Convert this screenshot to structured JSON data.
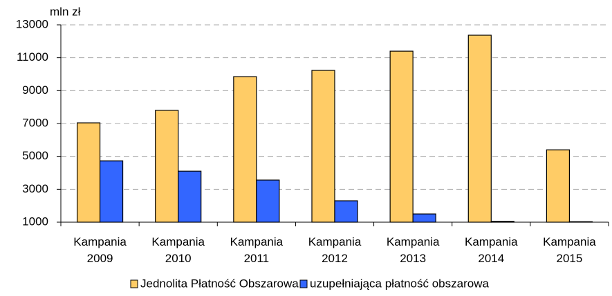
{
  "chart_data": {
    "type": "bar",
    "y_label": "mln zł",
    "categories": [
      "Kampania 2009",
      "Kampania 2010",
      "Kampania 2011",
      "Kampania 2012",
      "Kampania 2013",
      "Kampania 2014",
      "Kampania 2015"
    ],
    "series": [
      {
        "name": "Jednolita Płatność Obszarowa",
        "color": "#ffcc66",
        "values": [
          7040,
          7800,
          9850,
          10230,
          11400,
          12370,
          5400
        ]
      },
      {
        "name": "uzupełniająca płatność obszarowa",
        "color": "#3366ff",
        "values": [
          4730,
          4100,
          3560,
          2300,
          1500,
          1050,
          1030
        ]
      }
    ],
    "ylim": [
      1000,
      13000
    ],
    "yticks": [
      1000,
      3000,
      5000,
      7000,
      9000,
      11000,
      13000
    ],
    "grid": true,
    "legend": "bottom"
  }
}
